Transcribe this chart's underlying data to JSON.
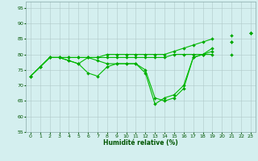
{
  "xlabel": "Humidité relative (%)",
  "background_color": "#d4efef",
  "grid_color": "#b0c8c8",
  "line_color": "#00bb00",
  "marker_color": "#00aa00",
  "xlim": [
    -0.5,
    23.5
  ],
  "ylim": [
    55,
    97
  ],
  "yticks": [
    55,
    60,
    65,
    70,
    75,
    80,
    85,
    90,
    95
  ],
  "xticks": [
    0,
    1,
    2,
    3,
    4,
    5,
    6,
    7,
    8,
    9,
    10,
    11,
    12,
    13,
    14,
    15,
    16,
    17,
    18,
    19,
    20,
    21,
    22,
    23
  ],
  "y1": [
    73,
    76,
    79,
    79,
    78,
    77,
    74,
    73,
    76,
    77,
    77,
    77,
    74,
    64,
    66,
    67,
    70,
    79,
    80,
    81,
    null,
    84,
    null,
    87
  ],
  "y2": [
    73,
    76,
    79,
    79,
    79,
    79,
    79,
    79,
    80,
    80,
    80,
    80,
    80,
    80,
    80,
    81,
    82,
    83,
    84,
    85,
    null,
    86,
    null,
    87
  ],
  "y3": [
    73,
    76,
    79,
    79,
    79,
    79,
    79,
    79,
    79,
    79,
    79,
    79,
    79,
    79,
    79,
    80,
    80,
    80,
    80,
    80,
    null,
    80,
    null,
    87
  ],
  "y4": [
    73,
    76,
    79,
    79,
    78,
    77,
    79,
    78,
    77,
    77,
    77,
    77,
    75,
    66,
    65,
    66,
    69,
    79,
    80,
    82,
    null,
    84,
    null,
    87
  ]
}
